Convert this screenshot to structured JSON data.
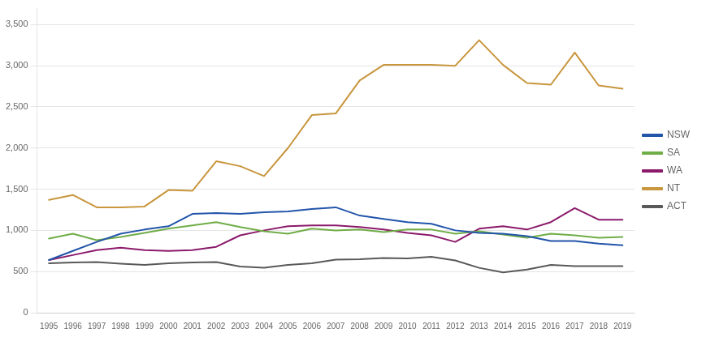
{
  "chart_data": {
    "type": "line",
    "x": [
      1995,
      1996,
      1997,
      1998,
      1999,
      2000,
      2001,
      2002,
      2003,
      2004,
      2005,
      2006,
      2007,
      2008,
      2009,
      2010,
      2011,
      2012,
      2013,
      2014,
      2015,
      2016,
      2017,
      2018,
      2019
    ],
    "xlim": [
      1994.5,
      2019.5
    ],
    "xticks": [
      1995,
      1996,
      1997,
      1998,
      1999,
      2000,
      2001,
      2002,
      2003,
      2004,
      2005,
      2006,
      2007,
      2008,
      2009,
      2010,
      2011,
      2012,
      2013,
      2014,
      2015,
      2016,
      2017,
      2018,
      2019
    ],
    "ylim": [
      0,
      3700
    ],
    "yticks": [
      0,
      500,
      {
        "value": 1000,
        "label": "1,000"
      },
      {
        "value": 1500,
        "label": "1,500"
      },
      {
        "value": 2000,
        "label": "2,000"
      },
      {
        "value": 2500,
        "label": "2,500"
      },
      {
        "value": 3000,
        "label": "3,000"
      },
      {
        "value": 3500,
        "label": "3,500"
      }
    ],
    "grid": true,
    "legend": "right",
    "series": [
      {
        "name": "NSW",
        "color": "#2255AA",
        "values": [
          640,
          750,
          860,
          960,
          1010,
          1050,
          1200,
          1210,
          1200,
          1220,
          1230,
          1260,
          1280,
          1180,
          1140,
          1100,
          1080,
          1000,
          970,
          960,
          930,
          870,
          870,
          840,
          820
        ]
      },
      {
        "name": "SA",
        "color": "#70AD47",
        "values": [
          900,
          960,
          880,
          920,
          970,
          1020,
          1060,
          1100,
          1040,
          990,
          960,
          1020,
          1000,
          1010,
          980,
          1010,
          1010,
          960,
          990,
          950,
          910,
          960,
          940,
          910,
          920
        ]
      },
      {
        "name": "WA",
        "color": "#8B1A6B",
        "values": [
          640,
          700,
          760,
          790,
          760,
          750,
          760,
          800,
          940,
          1000,
          1050,
          1060,
          1060,
          1040,
          1010,
          970,
          940,
          860,
          1020,
          1050,
          1010,
          1100,
          1270,
          1130,
          1130
        ]
      },
      {
        "name": "NT",
        "color": "#C8963D",
        "values": [
          1370,
          1430,
          1280,
          1280,
          1290,
          1490,
          1480,
          1840,
          1780,
          1660,
          2000,
          2400,
          2420,
          2820,
          3010,
          3010,
          3010,
          3000,
          3310,
          3010,
          2790,
          2770,
          3160,
          2760,
          2720
        ]
      },
      {
        "name": "ACT",
        "color": "#595959",
        "values": [
          600,
          610,
          615,
          595,
          580,
          600,
          610,
          615,
          560,
          545,
          580,
          600,
          645,
          650,
          665,
          660,
          680,
          635,
          545,
          490,
          525,
          580,
          565,
          565,
          565
        ]
      }
    ]
  }
}
